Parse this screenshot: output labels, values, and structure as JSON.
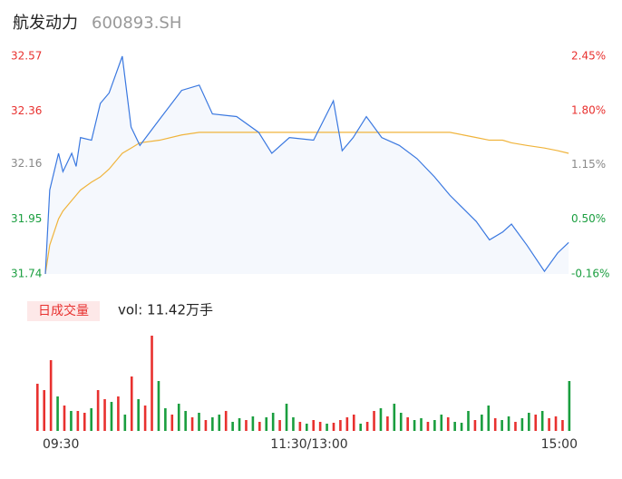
{
  "chart_data": [
    {
      "type": "line",
      "title": "航发动力",
      "subtitle": "600893.SH",
      "x": [
        0,
        2,
        6,
        8,
        12,
        14,
        16,
        21,
        25,
        29,
        35,
        39,
        43,
        52,
        62,
        70,
        76,
        87,
        97,
        103,
        111,
        122,
        128,
        131,
        135,
        140,
        146,
        153,
        161,
        169,
        177,
        184,
        190,
        196,
        202,
        208,
        212,
        219,
        227,
        233,
        238
      ],
      "series": [
        {
          "name": "price",
          "color": "#3a78e0",
          "values": [
            31.74,
            32.06,
            32.2,
            32.13,
            32.2,
            32.15,
            32.26,
            32.25,
            32.39,
            32.43,
            32.57,
            32.3,
            32.23,
            32.33,
            32.44,
            32.46,
            32.35,
            32.34,
            32.28,
            32.2,
            32.26,
            32.25,
            32.35,
            32.4,
            32.21,
            32.26,
            32.34,
            32.26,
            32.23,
            32.18,
            32.11,
            32.04,
            31.99,
            31.94,
            31.87,
            31.9,
            31.93,
            31.85,
            31.75,
            31.82,
            31.86
          ]
        },
        {
          "name": "avg",
          "color": "#f0b43c",
          "values": [
            31.74,
            31.85,
            31.95,
            31.98,
            32.02,
            32.04,
            32.06,
            32.09,
            32.11,
            32.14,
            32.2,
            32.22,
            32.24,
            32.25,
            32.27,
            32.28,
            32.28,
            32.28,
            32.28,
            32.28,
            32.28,
            32.28,
            32.28,
            32.28,
            32.28,
            32.28,
            32.28,
            32.28,
            32.28,
            32.28,
            32.28,
            32.28,
            32.27,
            32.26,
            32.25,
            32.25,
            32.24,
            32.23,
            32.22,
            32.21,
            32.2
          ]
        }
      ],
      "xlim": [
        0,
        240
      ],
      "xticks": [
        {
          "value": 0,
          "label": "09:30"
        },
        {
          "value": 120,
          "label": "11:30/13:00"
        },
        {
          "value": 240,
          "label": "15:00"
        }
      ],
      "ylim": [
        31.74,
        32.57
      ],
      "yticks": [
        32.57,
        32.36,
        32.16,
        31.95,
        31.74
      ],
      "ytick_colors": [
        "#e8312f",
        "#e8312f",
        "#888888",
        "#1a9e3f",
        "#1a9e3f"
      ],
      "y2lim": [
        -0.16,
        2.45
      ],
      "y2ticks": [
        {
          "value": 2.45,
          "label": "2.45%"
        },
        {
          "value": 1.8,
          "label": "1.80%"
        },
        {
          "value": 1.15,
          "label": "1.15%"
        },
        {
          "value": 0.5,
          "label": "0.50%"
        },
        {
          "value": -0.16,
          "label": "-0.16%"
        }
      ],
      "area_color": "#f5f8fd"
    },
    {
      "type": "bar",
      "legend": "日成交量",
      "annotation": "vol: 11.42万手",
      "ylim": [
        0,
        105
      ],
      "values": [
        52,
        45,
        78,
        38,
        28,
        22,
        22,
        20,
        25,
        45,
        35,
        32,
        38,
        18,
        60,
        35,
        28,
        105,
        55,
        25,
        18,
        30,
        22,
        15,
        20,
        12,
        15,
        18,
        22,
        10,
        14,
        12,
        16,
        10,
        15,
        20,
        12,
        30,
        15,
        10,
        8,
        12,
        10,
        8,
        9,
        12,
        15,
        18,
        8,
        10,
        22,
        25,
        16,
        30,
        20,
        15,
        12,
        14,
        10,
        12,
        18,
        15,
        10,
        9,
        22,
        12,
        18,
        28,
        14,
        12,
        16,
        10,
        14,
        20,
        18,
        22,
        14,
        16,
        12,
        55
      ],
      "colors": [
        "#e8312f",
        "#e8312f",
        "#e8312f",
        "#1a9e3f",
        "#e8312f",
        "#1a9e3f",
        "#e8312f",
        "#e8312f",
        "#1a9e3f",
        "#e8312f",
        "#e8312f",
        "#1a9e3f",
        "#e8312f",
        "#1a9e3f",
        "#e8312f",
        "#1a9e3f",
        "#e8312f",
        "#e8312f",
        "#1a9e3f",
        "#1a9e3f",
        "#e8312f",
        "#1a9e3f",
        "#1a9e3f",
        "#e8312f",
        "#1a9e3f",
        "#e8312f",
        "#1a9e3f",
        "#1a9e3f",
        "#e8312f",
        "#1a9e3f",
        "#1a9e3f",
        "#e8312f",
        "#1a9e3f",
        "#e8312f",
        "#1a9e3f",
        "#1a9e3f",
        "#e8312f",
        "#1a9e3f",
        "#1a9e3f",
        "#e8312f",
        "#1a9e3f",
        "#e8312f",
        "#e8312f",
        "#1a9e3f",
        "#e8312f",
        "#e8312f",
        "#e8312f",
        "#e8312f",
        "#1a9e3f",
        "#e8312f",
        "#e8312f",
        "#1a9e3f",
        "#e8312f",
        "#1a9e3f",
        "#1a9e3f",
        "#e8312f",
        "#1a9e3f",
        "#1a9e3f",
        "#e8312f",
        "#1a9e3f",
        "#1a9e3f",
        "#e8312f",
        "#1a9e3f",
        "#1a9e3f",
        "#1a9e3f",
        "#e8312f",
        "#1a9e3f",
        "#1a9e3f",
        "#e8312f",
        "#1a9e3f",
        "#1a9e3f",
        "#e8312f",
        "#1a9e3f",
        "#1a9e3f",
        "#e8312f",
        "#1a9e3f",
        "#e8312f",
        "#e8312f",
        "#e8312f",
        "#1a9e3f"
      ],
      "legend_color": "#e8312f"
    }
  ]
}
